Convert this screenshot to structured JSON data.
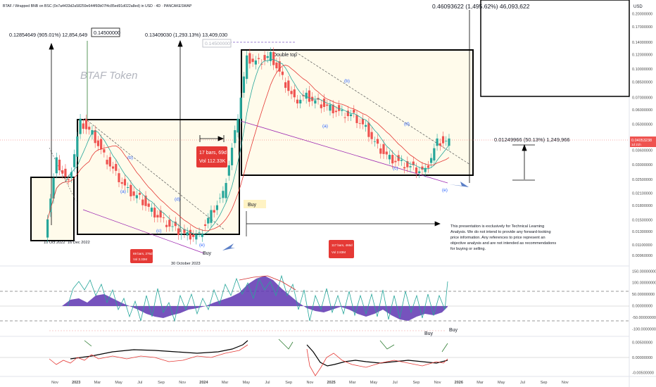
{
  "header": {
    "title": "BTAF / Wrapped BNB on BSC (0x7a4433d2a58259e644f60b07f4c85ed91d022a8ed) in USD · 4D · PANCAKESWAP",
    "currency": "USD",
    "watermark": "BTAF Token"
  },
  "annotations": {
    "m1": "0.12854649 (905.01%) 12,854,649",
    "m2": "0.14500000",
    "m3": "0.13409030 (1,293.13%) 13,409,030",
    "m4": "0.14500000",
    "m5": "0.46093622 (1,495.62%) 46,093,622",
    "m6": "0.01249966 (50.13%) 1,249,966",
    "double_top": "Double top",
    "date1": "10 Oct 2022",
    "date2": "16 Dec 2022",
    "date3": "30 October 2023",
    "buy1": "Buy",
    "buy2": "Buy",
    "buy3": "Buy",
    "buy4": "Buy",
    "box_bars_1_l1": "17 bars, 69d",
    "box_bars_1_l2": "Vol 112.33K",
    "box_bars_2_l1": "69 bars, 276d",
    "box_bars_2_l2": "Vol 3.33M",
    "box_bars_3_l1": "117 bars, 466d",
    "box_bars_3_l2": "Vol 2.83M",
    "price_tag": "0.04053238",
    "price_tag_sub": "1d 21h",
    "wave_a1": "(a)",
    "wave_b1": "(b)",
    "wave_c1": "(c)",
    "wave_d1": "(d)",
    "wave_e1": "(e)",
    "wave_a2": "(a)",
    "wave_b2": "(b)",
    "wave_c2": "(c)",
    "wave_d2": "(d)",
    "wave_e2": "(e)",
    "disclaimer": [
      "This presentation is exclusively for Technical Learning",
      "Analysis. We do not intend to provide any forward-looking",
      "price information. Any references to price represent an",
      "objective analysis and are not intended as recommendations",
      "for buying or selling."
    ]
  },
  "chart_data": {
    "type": "candlestick",
    "title": "BTAF / Wrapped BNB on BSC (0x7a4433d2a58259e644f60b07f4c85ed91d022a8ed) in USD · 4D · PANCAKESWAP",
    "x_ticks": [
      "Nov",
      "2023",
      "Mar",
      "May",
      "Jul",
      "Sep",
      "Nov",
      "2024",
      "Mar",
      "May",
      "Jul",
      "Sep",
      "Nov",
      "2025",
      "Mar",
      "May",
      "Jul",
      "Sep",
      "Nov",
      "2026",
      "Mar",
      "May",
      "Jul",
      "Sep",
      "Nov"
    ],
    "price_axis": {
      "scale": "log",
      "unit": "USD",
      "ticks": [
        "0.20000000",
        "0.17000000",
        "0.14000000",
        "0.12000000",
        "0.10000000",
        "0.08500000",
        "0.07000000",
        "0.06000000",
        "0.05000000",
        "0.04053238",
        "0.03600000",
        "0.03000000",
        "0.02500000",
        "0.02100000",
        "0.01800000",
        "0.01500000",
        "0.01300000",
        "0.01100000",
        "0.00960000"
      ]
    },
    "osc_axis": {
      "ticks": [
        "150.00000000",
        "100.00000000",
        "50.00000000",
        "0.00000000",
        "-50.00000000",
        "-100.00000000"
      ],
      "range": [
        -120,
        160
      ]
    },
    "osc2_axis": {
      "ticks": [
        "0.00500000",
        "0.00000000",
        "-0.00500000"
      ],
      "range": [
        -0.006,
        0.006
      ]
    },
    "last_price": 0.04053238,
    "series": [
      {
        "name": "price",
        "x": [
          "2022-10",
          "2022-11",
          "2022-12",
          "2023-01",
          "2023-02",
          "2023-03",
          "2023-04",
          "2023-05",
          "2023-06",
          "2023-07",
          "2023-08",
          "2023-09",
          "2023-10",
          "2023-11",
          "2023-12",
          "2024-01",
          "2024-02",
          "2024-03",
          "2024-04",
          "2024-05",
          "2024-06",
          "2024-07",
          "2024-08",
          "2024-09",
          "2024-10",
          "2024-11",
          "2024-12",
          "2025-01",
          "2025-02",
          "2025-03",
          "2025-04",
          "2025-05",
          "2025-06",
          "2025-07"
        ],
        "values": [
          0.0128,
          0.032,
          0.024,
          0.052,
          0.045,
          0.034,
          0.027,
          0.022,
          0.02,
          0.017,
          0.015,
          0.0135,
          0.0125,
          0.0125,
          0.0165,
          0.021,
          0.045,
          0.115,
          0.11,
          0.12,
          0.09,
          0.068,
          0.072,
          0.066,
          0.062,
          0.058,
          0.056,
          0.048,
          0.038,
          0.033,
          0.031,
          0.029,
          0.028,
          0.04053238
        ]
      }
    ]
  }
}
